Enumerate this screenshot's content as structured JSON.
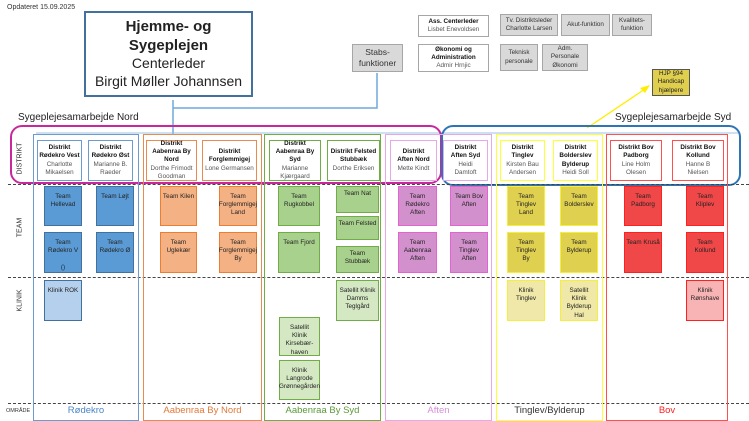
{
  "updated": "Opdateret 15.09.2025",
  "center": {
    "title": "Hjemme- og Sygeplejen",
    "role": "Centerleder",
    "name": "Birgit Møller Johannsen",
    "border_color": "#41719c"
  },
  "staff": {
    "label": "Stabs-\nfunktioner",
    "boxes": [
      {
        "title": "Ass. Centerleder",
        "name": "Lisbet Enevoldsen"
      },
      {
        "title": "Økonomi og\nAdministration",
        "name": "Admir Hrnjic"
      },
      {
        "title": "",
        "name": "Tv. Distriktsleder\nCharlotte Larsen"
      },
      {
        "title": "",
        "name": "Akut-funktion"
      },
      {
        "title": "",
        "name": "Kvalitets-\nfunktion"
      },
      {
        "title": "",
        "name": "Teknisk\npersonale"
      },
      {
        "title": "",
        "name": "Adm. Personale\nØkonomi"
      }
    ]
  },
  "hjp": "HJP §94\nHandicap\nhjælpere",
  "collaborations": {
    "nord": {
      "label": "Sygeplejesamarbejde Nord",
      "color": "#c8289c"
    },
    "syd": {
      "label": "Sygeplejesamarbejde Syd",
      "color": "#2e75b6"
    }
  },
  "rows": {
    "distrikt": "DISTRIKT",
    "team": "TEAM",
    "klinik": "KLINIK",
    "omrade": "OMRÅDE"
  },
  "areas": [
    {
      "name": "Rødekro",
      "color": "#6c9bd0",
      "label_color": "#4a86c8",
      "team_fill": "#5b9bd5",
      "team_border": "#41719c",
      "clinic_fill": "#b4d0ec"
    },
    {
      "name": "Aabenraa By Nord",
      "color": "#e98b4f",
      "label_color": "#e07a3a",
      "team_fill": "#f4b183",
      "team_border": "#ed7d31"
    },
    {
      "name": "Aabenraa By Syd",
      "color": "#70ad47",
      "label_color": "#5a9a38",
      "team_fill": "#a9d18e",
      "team_border": "#70ad47",
      "clinic_fill": "#d5e8c4"
    },
    {
      "name": "Aften",
      "color": "#e6a8e6",
      "label_color": "#d98fd9",
      "team_fill": "#d291cc",
      "team_border": "#e462d2"
    },
    {
      "name": "Tinglev/Bylderup",
      "color": "#ffff33",
      "label_color": "#333333",
      "team_fill": "#e0d050",
      "team_border": "#f5ef3c",
      "clinic_fill": "#efe8a8"
    },
    {
      "name": "Bov",
      "color": "#ff5050",
      "label_color": "#ff2020",
      "team_fill": "#f04848",
      "team_border": "#ff2020",
      "clinic_fill": "#f8b4b4"
    }
  ],
  "districts": [
    {
      "title": "Distrikt\nRødekro Vest",
      "leader": "Charlotte\nMikaelsen",
      "area": 0
    },
    {
      "title": "Distrikt\nRødekro Øst",
      "leader": "Marianne B.\nRaeder",
      "area": 0
    },
    {
      "title": "Distrikt\nAabenraa By\nNord",
      "leader": "Dorthe Frimodt\nGoodman",
      "area": 1
    },
    {
      "title": "Distrikt\nForglemmigej",
      "leader": "Lone Germansen",
      "area": 1
    },
    {
      "title": "Distrikt\nAabenraa By\nSyd",
      "leader": "Marianne\nKjærgaard",
      "area": 2
    },
    {
      "title": "Distrikt Felsted\nStubbæk",
      "leader": "Dorthe Eriksen",
      "area": 2
    },
    {
      "title": "Distrikt\nAften Nord",
      "leader": "Mette Kindt",
      "area": 3
    },
    {
      "title": "Distrikt\nAften Syd",
      "leader": "Heidi\nDamtoft",
      "area": 3
    },
    {
      "title": "Distrikt\nTinglev",
      "leader": "Kirsten Bau\nAndersen",
      "area": 4
    },
    {
      "title": "Distrikt\nBolderslev\nBylderup",
      "leader": "Heidi Soll",
      "area": 4
    },
    {
      "title": "Distrikt Bov\nPadborg",
      "leader": "Line Holm\nOlesen",
      "area": 5
    },
    {
      "title": "Distrikt Bov\nKollund",
      "leader": "Hanne B\nNielsen",
      "area": 5
    }
  ],
  "teams": [
    {
      "name": "Team\nHellevad",
      "area": 0
    },
    {
      "name": "Team Løjt",
      "area": 0
    },
    {
      "name": "Team\nRødekro V\n\n()",
      "area": 0
    },
    {
      "name": "Team\nRødekro Ø",
      "area": 0
    },
    {
      "name": "Team Kilen",
      "area": 1
    },
    {
      "name": "Team\nForglemmigej\nLand",
      "area": 1
    },
    {
      "name": "Team\nUglekær",
      "area": 1
    },
    {
      "name": "Team\nForglemmigej\nBy",
      "area": 1
    },
    {
      "name": "Team\nRugkobbel",
      "area": 2
    },
    {
      "name": "Team Fjord",
      "area": 2
    },
    {
      "name": "Team Nat",
      "area": 2
    },
    {
      "name": "Team Felsted",
      "area": 2
    },
    {
      "name": "Team\nStubbæk",
      "area": 2
    },
    {
      "name": "Team\nRødekro\nAften",
      "area": 3
    },
    {
      "name": "Team\nAabenraa\nAften",
      "area": 3
    },
    {
      "name": "Team Bov\nAften",
      "area": 3
    },
    {
      "name": "Team Tinglev\nAften",
      "area": 3
    },
    {
      "name": "Team Tinglev\nLand",
      "area": 4
    },
    {
      "name": "Team Tinglev\nBy",
      "area": 4
    },
    {
      "name": "Team\nBolderslev",
      "area": 4
    },
    {
      "name": "Team\nBylderup",
      "area": 4
    },
    {
      "name": "Team\nPadborg",
      "area": 5
    },
    {
      "name": "Team Kruså",
      "area": 5
    },
    {
      "name": "Team Kliplev",
      "area": 5
    },
    {
      "name": "Team\nKollund",
      "area": 5
    }
  ],
  "clinics": [
    {
      "name": "Klinik ROK",
      "area": 0
    },
    {
      "name": "Satellit Klinik\nDamms\nTeglgård",
      "area": 2
    },
    {
      "name": "Satellit\nKlinik Kirsebær-\nhaven",
      "area": 2
    },
    {
      "name": "Klinik Langrode\nGrønnegården",
      "area": 2
    },
    {
      "name": "Klinik\nTinglev",
      "area": 4
    },
    {
      "name": "Satellit Klinik\nBylderup Hal",
      "area": 4
    },
    {
      "name": "Klinik\nRønshave",
      "area": 5
    }
  ]
}
